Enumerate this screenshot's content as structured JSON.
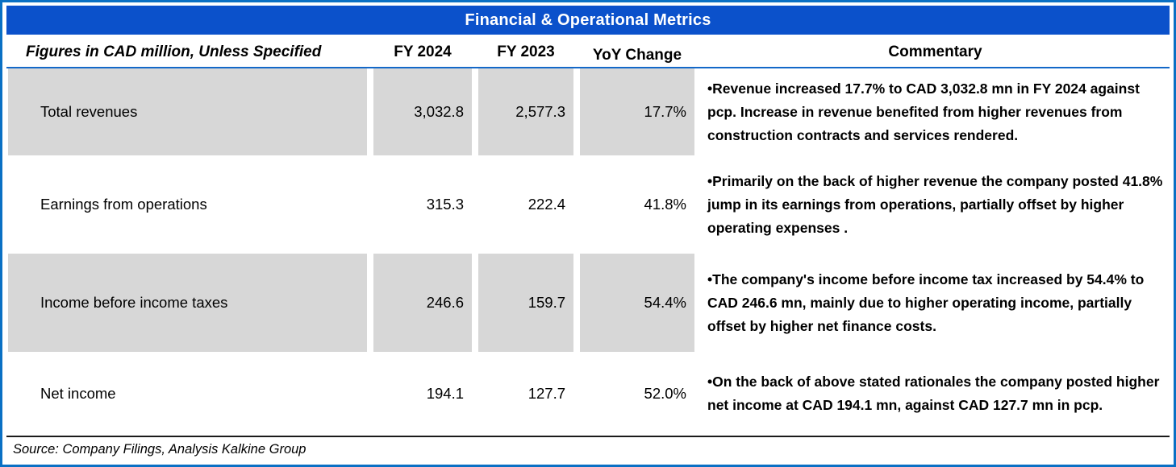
{
  "title_band": {
    "label": "Financial & Operational Metrics"
  },
  "header": {
    "figures_label": "Figures in CAD million, Unless Specified",
    "fy2024": "FY 2024",
    "fy2023": "FY 2023",
    "yoy_change": "YoY Change",
    "commentary": "Commentary"
  },
  "rows": [
    {
      "label": "Total revenues",
      "fy2024": "3,032.8",
      "fy2023": "2,577.3",
      "yoy": "17.7%",
      "commentary": "•Revenue increased 17.7% to CAD 3,032.8 mn in FY 2024 against pcp. Increase in revenue benefited from higher revenues from construction contracts and services rendered."
    },
    {
      "label": "Earnings from operations",
      "fy2024": "315.3",
      "fy2023": "222.4",
      "yoy": "41.8%",
      "commentary": "•Primarily on the back of higher revenue the company posted 41.8% jump in its earnings from operations, partially offset by higher operating expenses ."
    },
    {
      "label": "Income before income taxes",
      "fy2024": "246.6",
      "fy2023": "159.7",
      "yoy": "54.4%",
      "commentary": "•The company's income before income tax increased by 54.4% to CAD 246.6 mn, mainly due to higher operating income, partially offset by higher net finance costs."
    },
    {
      "label": "Net income",
      "fy2024": "194.1",
      "fy2023": "127.7",
      "yoy": "52.0%",
      "commentary": "•On the back of above stated rationales the company posted higher net income at CAD 194.1 mn, against CAD 127.7 mn in pcp."
    }
  ],
  "footer": {
    "source": "Source: Company Filings, Analysis Kalkine Group"
  },
  "colors": {
    "band_blue": "#0b51cb",
    "border_blue": "#0a70c4",
    "rule_blue": "#1368c8",
    "shaded_gray": "#d7d7d7",
    "text_black": "#000000"
  },
  "chart_data": {
    "type": "table",
    "title": "Financial & Operational Metrics",
    "columns": [
      "Figures in CAD million, Unless Specified",
      "FY 2024",
      "FY 2023",
      "YoY Change",
      "Commentary"
    ],
    "categories": [
      "Total revenues",
      "Earnings from operations",
      "Income before income taxes",
      "Net income"
    ],
    "series": [
      {
        "name": "FY 2024",
        "values": [
          3032.8,
          315.3,
          246.6,
          194.1
        ]
      },
      {
        "name": "FY 2023",
        "values": [
          2577.3,
          222.4,
          159.7,
          127.7
        ]
      },
      {
        "name": "YoY Change %",
        "values": [
          17.7,
          41.8,
          54.4,
          52.0
        ]
      }
    ],
    "source": "Source: Company Filings, Analysis Kalkine Group"
  }
}
